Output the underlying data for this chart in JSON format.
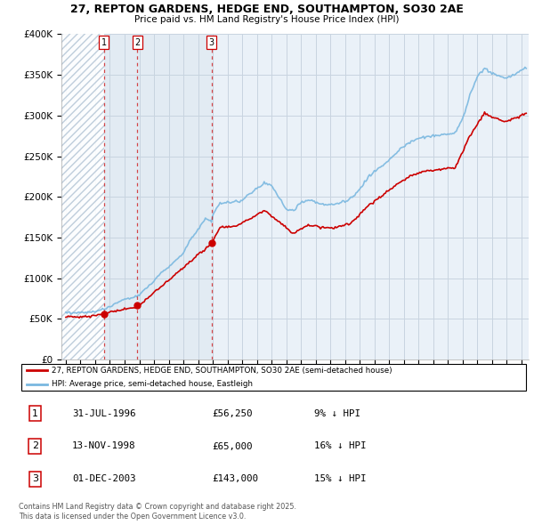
{
  "title": "27, REPTON GARDENS, HEDGE END, SOUTHAMPTON, SO30 2AE",
  "subtitle": "Price paid vs. HM Land Registry's House Price Index (HPI)",
  "legend_line1": "27, REPTON GARDENS, HEDGE END, SOUTHAMPTON, SO30 2AE (semi-detached house)",
  "legend_line2": "HPI: Average price, semi-detached house, Eastleigh",
  "copyright": "Contains HM Land Registry data © Crown copyright and database right 2025.\nThis data is licensed under the Open Government Licence v3.0.",
  "transactions": [
    {
      "num": 1,
      "date": "31-JUL-1996",
      "price": "£56,250",
      "hpi": "9% ↓ HPI",
      "x_year": 1996.583
    },
    {
      "num": 2,
      "date": "13-NOV-1998",
      "price": "£65,000",
      "hpi": "16% ↓ HPI",
      "x_year": 1998.875
    },
    {
      "num": 3,
      "date": "01-DEC-2003",
      "price": "£143,000",
      "hpi": "15% ↓ HPI",
      "x_year": 2003.917
    }
  ],
  "hpi_color": "#7ab8e0",
  "price_color": "#cc0000",
  "hatch_color": "#dce6f0",
  "shade_color": "#dce6f0",
  "grid_color": "#c8d4e0",
  "background_color": "#eaf1f8",
  "ylim": [
    0,
    400000
  ],
  "ytick_max": 350000,
  "xlim_start": 1993.7,
  "xlim_end": 2025.5
}
